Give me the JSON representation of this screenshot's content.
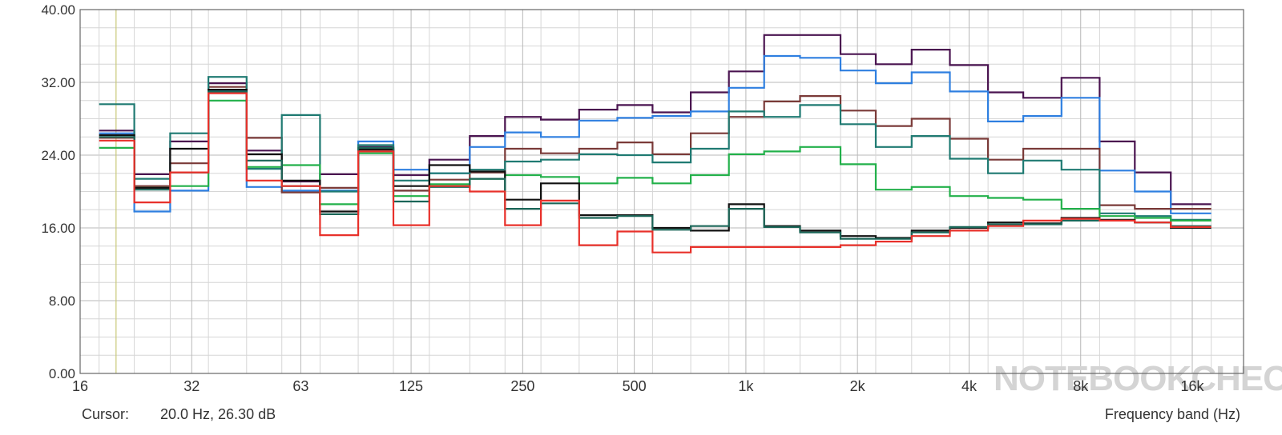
{
  "chart_data": {
    "type": "line",
    "step": true,
    "grid": true,
    "ylim": [
      0,
      40
    ],
    "y_ticks": [
      "0.00",
      "8.00",
      "16.00",
      "24.00",
      "32.00",
      "40.00"
    ],
    "y_tick_values": [
      0,
      8,
      16,
      24,
      32,
      40
    ],
    "x_scale": "log",
    "xlim": [
      16,
      22000
    ],
    "x_ticks": [
      "16",
      "32",
      "63",
      "125",
      "250",
      "500",
      "1k",
      "2k",
      "4k",
      "8k",
      "16k"
    ],
    "x_tick_values": [
      16,
      32,
      63,
      125,
      250,
      500,
      1000,
      2000,
      4000,
      8000,
      16000
    ],
    "xlabel": "Frequency band (Hz)",
    "cursor_label": "Cursor:",
    "cursor_readout": "20.0 Hz, 26.30 dB",
    "cursor_x": 20,
    "cursor_color": "#c8c878",
    "watermark": "NOTEBOOKCHECK",
    "band_edges": [
      18,
      22.4,
      28,
      35.5,
      45,
      56,
      71,
      90,
      112,
      140,
      180,
      224,
      280,
      355,
      450,
      560,
      710,
      900,
      1120,
      1400,
      1800,
      2240,
      2800,
      3550,
      4500,
      5600,
      7100,
      9000,
      11200,
      14000,
      18000
    ],
    "series": [
      {
        "color": "#4a1450",
        "values": [
          26.7,
          21.9,
          25.5,
          31.9,
          24.5,
          21.1,
          21.9,
          24.9,
          21.8,
          23.5,
          26.1,
          28.2,
          27.9,
          29.0,
          29.5,
          28.7,
          30.9,
          33.2,
          37.2,
          37.2,
          35.1,
          34.0,
          35.6,
          33.9,
          30.9,
          30.3,
          32.5,
          25.5,
          22.1,
          18.6
        ]
      },
      {
        "color": "#2e7fe0",
        "values": [
          26.4,
          17.8,
          20.1,
          31.1,
          20.5,
          20.1,
          20.1,
          25.5,
          22.4,
          22.0,
          24.9,
          26.5,
          26.0,
          27.8,
          28.1,
          28.3,
          28.8,
          31.4,
          34.9,
          34.7,
          33.3,
          31.9,
          33.1,
          31.0,
          27.7,
          28.3,
          30.3,
          22.3,
          20.0,
          17.6
        ]
      },
      {
        "color": "#7a3a38",
        "values": [
          25.9,
          20.6,
          23.1,
          31.5,
          25.9,
          19.9,
          20.4,
          24.7,
          20.1,
          21.3,
          22.1,
          24.7,
          24.2,
          24.7,
          25.4,
          24.1,
          26.4,
          28.2,
          29.9,
          30.5,
          28.9,
          27.2,
          28.0,
          25.8,
          23.5,
          24.7,
          24.7,
          18.5,
          18.1,
          18.1
        ]
      },
      {
        "color": "#1f7a72",
        "values": [
          29.6,
          21.4,
          26.4,
          32.6,
          22.5,
          28.4,
          20.0,
          25.1,
          21.2,
          22.0,
          22.4,
          23.3,
          23.5,
          24.1,
          24.0,
          23.2,
          24.7,
          28.8,
          28.2,
          29.5,
          27.4,
          24.9,
          26.1,
          23.6,
          22.0,
          23.4,
          22.4,
          17.6,
          17.3,
          16.9
        ]
      },
      {
        "color": "#22b04a",
        "values": [
          24.8,
          20.4,
          20.6,
          30.0,
          22.7,
          22.9,
          18.6,
          24.2,
          19.5,
          20.8,
          21.4,
          21.8,
          21.6,
          20.9,
          21.5,
          20.9,
          21.8,
          24.1,
          24.4,
          24.9,
          23.0,
          20.2,
          20.5,
          19.5,
          19.3,
          19.1,
          18.1,
          17.3,
          17.1,
          16.8
        ]
      },
      {
        "color": "#111111",
        "values": [
          26.2,
          20.4,
          24.7,
          31.2,
          24.1,
          21.2,
          17.8,
          24.6,
          20.6,
          22.9,
          22.2,
          19.1,
          20.9,
          17.4,
          17.4,
          16.0,
          15.7,
          18.6,
          16.2,
          15.7,
          15.1,
          14.9,
          15.7,
          16.0,
          16.6,
          16.5,
          17.1,
          16.9,
          16.6,
          16.0
        ]
      },
      {
        "color": "#1b6658",
        "values": [
          26.0,
          20.2,
          22.1,
          31.0,
          23.4,
          20.6,
          17.5,
          24.8,
          18.9,
          20.5,
          21.4,
          18.1,
          18.7,
          17.1,
          17.3,
          15.8,
          16.2,
          18.1,
          16.1,
          15.5,
          14.8,
          14.8,
          15.5,
          16.1,
          16.4,
          16.4,
          16.8,
          16.8,
          16.6,
          16.2
        ]
      },
      {
        "color": "#e8302a",
        "values": [
          25.6,
          18.8,
          22.1,
          30.8,
          21.2,
          20.6,
          15.2,
          24.4,
          16.3,
          20.6,
          20.0,
          16.3,
          19.0,
          14.1,
          15.6,
          13.3,
          13.9,
          13.9,
          13.9,
          13.9,
          14.1,
          14.5,
          15.1,
          15.7,
          16.2,
          16.8,
          17.0,
          16.8,
          16.6,
          16.1
        ]
      }
    ]
  }
}
